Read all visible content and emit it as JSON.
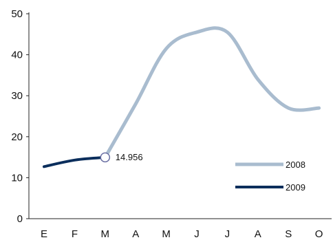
{
  "chart_data": {
    "type": "line",
    "categories": [
      "E",
      "F",
      "M",
      "A",
      "M",
      "J",
      "J",
      "A",
      "S",
      "O"
    ],
    "ylim": [
      0,
      50
    ],
    "yticks": [
      0,
      10,
      20,
      30,
      40,
      50
    ],
    "grid": false,
    "legend_position": "bottom-right",
    "series": [
      {
        "name": "2008",
        "color": "#a9bccf",
        "values": [
          null,
          null,
          14.956,
          28,
          41.5,
          45.5,
          45.5,
          34,
          27,
          27
        ]
      },
      {
        "name": "2009",
        "color": "#0b2e5c",
        "values": [
          12.7,
          14.3,
          14.956,
          null,
          null,
          null,
          null,
          null,
          null,
          null
        ]
      }
    ],
    "annotations": [
      {
        "category_index": 2,
        "value": 14.956,
        "text": "14.956"
      }
    ]
  }
}
